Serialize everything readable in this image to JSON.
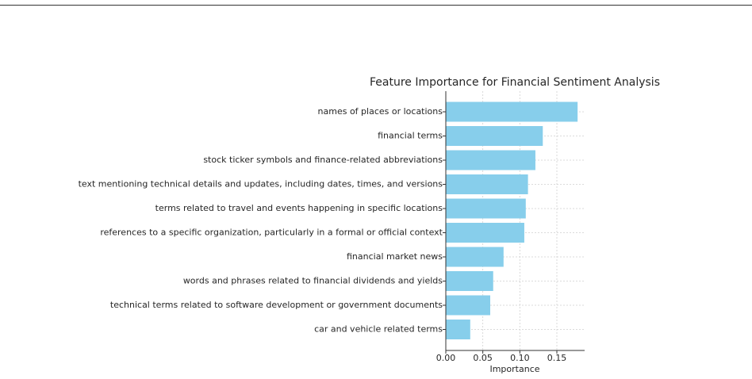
{
  "chart_data": {
    "type": "barh",
    "title": "Feature Importance for Financial Sentiment Analysis",
    "xlabel": "Importance",
    "categories": [
      "names of places or locations",
      "financial terms",
      "stock ticker symbols and finance-related abbreviations",
      "text mentioning technical details and updates, including dates, times, and versions",
      "terms related to travel and events happening in specific locations",
      "references to a specific organization, particularly in a formal or official context",
      "financial market news",
      "words and phrases related to financial dividends and yields",
      "technical terms related to software development or government documents",
      "car and vehicle related terms"
    ],
    "values": [
      0.178,
      0.131,
      0.121,
      0.111,
      0.108,
      0.106,
      0.078,
      0.064,
      0.06,
      0.033
    ],
    "color": "#87ceeb",
    "xlim": [
      0,
      0.1875
    ],
    "xticks": [
      {
        "value": 0,
        "label": "0.00"
      },
      0.05,
      {
        "value": 0.1,
        "label": "0.10"
      },
      0.15
    ],
    "grid": true
  }
}
